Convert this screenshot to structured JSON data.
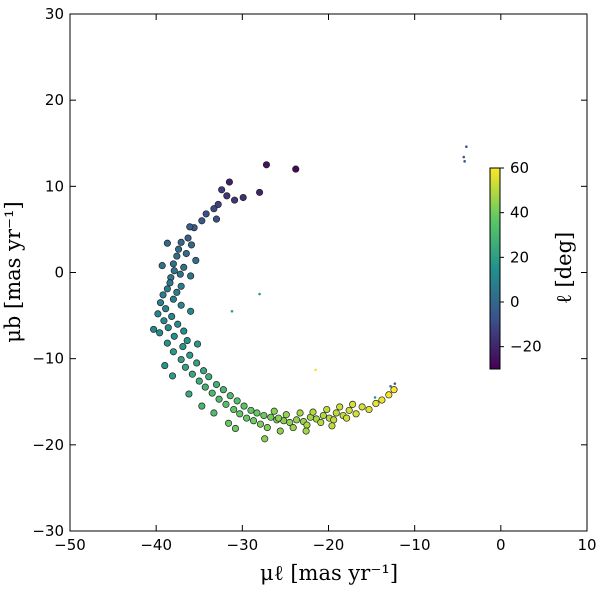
{
  "chart_data": {
    "type": "scatter",
    "xlabel": "μℓ [mas yr⁻¹]",
    "ylabel": "μb [mas yr⁻¹]",
    "xlim": [
      -50,
      10
    ],
    "ylim": [
      -30,
      30
    ],
    "x_ticks": [
      "−50",
      "−40",
      "−30",
      "−20",
      "−10",
      "0",
      "10"
    ],
    "y_ticks": [
      "−30",
      "−20",
      "−10",
      "0",
      "10",
      "20",
      "30"
    ],
    "grid": false,
    "colorbar": {
      "label": "ℓ  [deg]",
      "colormap": "viridis",
      "range": [
        -30,
        60
      ],
      "ticks": [
        "−20",
        "0",
        "20",
        "40",
        "60"
      ],
      "placement": "inside right"
    },
    "stream_points": [
      [
        -27.2,
        12.5,
        -25
      ],
      [
        -23.8,
        12.0,
        -28
      ],
      [
        -31.5,
        10.5,
        -22
      ],
      [
        -28.0,
        9.3,
        -20
      ],
      [
        -31.8,
        8.9,
        -15
      ],
      [
        -30.9,
        8.4,
        -15
      ],
      [
        -32.8,
        7.9,
        -12
      ],
      [
        -33.3,
        7.4,
        -10
      ],
      [
        -34.2,
        6.8,
        -8
      ],
      [
        -33.0,
        6.2,
        -8
      ],
      [
        -34.7,
        6.0,
        -6
      ],
      [
        -35.6,
        5.2,
        -4
      ],
      [
        -36.3,
        4.0,
        -2
      ],
      [
        -35.9,
        3.2,
        0
      ],
      [
        -37.1,
        3.5,
        0
      ],
      [
        -37.4,
        2.7,
        1
      ],
      [
        -36.5,
        2.2,
        2
      ],
      [
        -37.6,
        1.9,
        2
      ],
      [
        -35.4,
        1.4,
        3
      ],
      [
        -38.0,
        1.0,
        3
      ],
      [
        -36.8,
        0.6,
        4
      ],
      [
        -37.9,
        0.2,
        4
      ],
      [
        -37.2,
        -0.2,
        5
      ],
      [
        -38.3,
        -0.6,
        5
      ],
      [
        -36.0,
        -0.4,
        6
      ],
      [
        -38.4,
        -1.2,
        6
      ],
      [
        -37.1,
        -1.6,
        7
      ],
      [
        -38.7,
        -1.9,
        7
      ],
      [
        -37.6,
        -2.3,
        8
      ],
      [
        -39.2,
        -2.6,
        8
      ],
      [
        -38.0,
        -3.1,
        9
      ],
      [
        -39.5,
        -3.5,
        9
      ],
      [
        -37.1,
        -3.8,
        10
      ],
      [
        -38.9,
        -4.2,
        10
      ],
      [
        -39.8,
        -4.8,
        11
      ],
      [
        -38.2,
        -5.1,
        11
      ],
      [
        -36.0,
        -4.5,
        12
      ],
      [
        -39.1,
        -5.6,
        12
      ],
      [
        -37.5,
        -6.0,
        13
      ],
      [
        -38.6,
        -6.4,
        13
      ],
      [
        -36.8,
        -6.8,
        14
      ],
      [
        -39.6,
        -7.0,
        14
      ],
      [
        -37.9,
        -7.4,
        15
      ],
      [
        -36.4,
        -7.9,
        16
      ],
      [
        -38.7,
        -8.2,
        16
      ],
      [
        -36.9,
        -8.6,
        17
      ],
      [
        -35.2,
        -8.3,
        18
      ],
      [
        -38.0,
        -9.2,
        18
      ],
      [
        -36.1,
        -9.6,
        19
      ],
      [
        -37.1,
        -10.1,
        20
      ],
      [
        -35.3,
        -10.5,
        21
      ],
      [
        -36.6,
        -11.0,
        22
      ],
      [
        -34.5,
        -11.4,
        23
      ],
      [
        -35.8,
        -11.8,
        24
      ],
      [
        -33.9,
        -12.1,
        25
      ],
      [
        -35.0,
        -12.6,
        26
      ],
      [
        -33.0,
        -13.0,
        27
      ],
      [
        -34.3,
        -13.3,
        28
      ],
      [
        -32.2,
        -13.6,
        29
      ],
      [
        -33.5,
        -14.0,
        30
      ],
      [
        -31.4,
        -14.3,
        31
      ],
      [
        -32.7,
        -14.7,
        32
      ],
      [
        -30.6,
        -14.9,
        33
      ],
      [
        -31.9,
        -15.3,
        34
      ],
      [
        -29.8,
        -15.5,
        35
      ],
      [
        -31.0,
        -15.9,
        36
      ],
      [
        -29.0,
        -16.0,
        37
      ],
      [
        -30.3,
        -16.4,
        37
      ],
      [
        -28.3,
        -16.3,
        38
      ],
      [
        -29.5,
        -16.9,
        38
      ],
      [
        -27.5,
        -16.6,
        39
      ],
      [
        -28.7,
        -17.2,
        40
      ],
      [
        -26.7,
        -16.8,
        40
      ],
      [
        -27.9,
        -17.6,
        41
      ],
      [
        -26.0,
        -17.1,
        42
      ],
      [
        -27.1,
        -18.0,
        42
      ],
      [
        -25.2,
        -17.2,
        43
      ],
      [
        -26.3,
        -16.1,
        43
      ],
      [
        -24.5,
        -17.4,
        44
      ],
      [
        -25.6,
        -18.4,
        44
      ],
      [
        -23.7,
        -17.1,
        45
      ],
      [
        -24.9,
        -16.5,
        45
      ],
      [
        -22.9,
        -17.3,
        46
      ],
      [
        -24.1,
        -18.0,
        46
      ],
      [
        -22.1,
        -16.8,
        47
      ],
      [
        -23.3,
        -16.3,
        47
      ],
      [
        -21.4,
        -17.0,
        48
      ],
      [
        -22.5,
        -17.7,
        48
      ],
      [
        -20.6,
        -16.6,
        49
      ],
      [
        -21.8,
        -16.2,
        49
      ],
      [
        -19.9,
        -16.9,
        50
      ],
      [
        -20.9,
        -17.4,
        50
      ],
      [
        -19.1,
        -16.3,
        51
      ],
      [
        -20.2,
        -15.9,
        51
      ],
      [
        -18.3,
        -16.6,
        52
      ],
      [
        -19.4,
        -17.1,
        52
      ],
      [
        -17.6,
        -16.0,
        53
      ],
      [
        -18.7,
        -15.6,
        53
      ],
      [
        -16.8,
        -16.4,
        54
      ],
      [
        -17.9,
        -16.9,
        54
      ],
      [
        -16.1,
        -15.6,
        55
      ],
      [
        -17.2,
        -15.3,
        55
      ],
      [
        -15.3,
        -15.9,
        56
      ],
      [
        -14.5,
        -15.2,
        57
      ],
      [
        -13.8,
        -14.8,
        58
      ],
      [
        -13.0,
        -14.2,
        59
      ],
      [
        -12.4,
        -13.6,
        60
      ],
      [
        -27.4,
        -19.3,
        43
      ],
      [
        -31.6,
        -17.5,
        38
      ],
      [
        -33.3,
        -16.3,
        32
      ],
      [
        -30.8,
        -18.1,
        39
      ],
      [
        -25.8,
        -16.9,
        44
      ],
      [
        -22.6,
        -18.4,
        47
      ],
      [
        -19.6,
        -17.8,
        51
      ],
      [
        -34.7,
        -15.5,
        29
      ],
      [
        -36.2,
        -14.1,
        24
      ],
      [
        -39.0,
        -10.8,
        17
      ],
      [
        -38.1,
        -12.0,
        19
      ],
      [
        -40.3,
        -6.6,
        11
      ],
      [
        -39.3,
        0.8,
        4
      ],
      [
        -38.7,
        3.4,
        1
      ],
      [
        -36.1,
        5.3,
        -3
      ],
      [
        -32.4,
        9.6,
        -14
      ],
      [
        -29.9,
        8.7,
        -17
      ]
    ],
    "faint_points": [
      [
        -4.0,
        14.6,
        -5
      ],
      [
        -4.3,
        13.4,
        -6
      ],
      [
        -4.2,
        12.9,
        -5
      ],
      [
        -31.2,
        -4.5,
        20
      ],
      [
        -28.0,
        -2.5,
        18
      ],
      [
        -21.5,
        -11.3,
        58
      ],
      [
        -12.3,
        -12.9,
        -5
      ],
      [
        -12.8,
        -13.2,
        2
      ],
      [
        -14.6,
        -14.5,
        20
      ]
    ]
  }
}
